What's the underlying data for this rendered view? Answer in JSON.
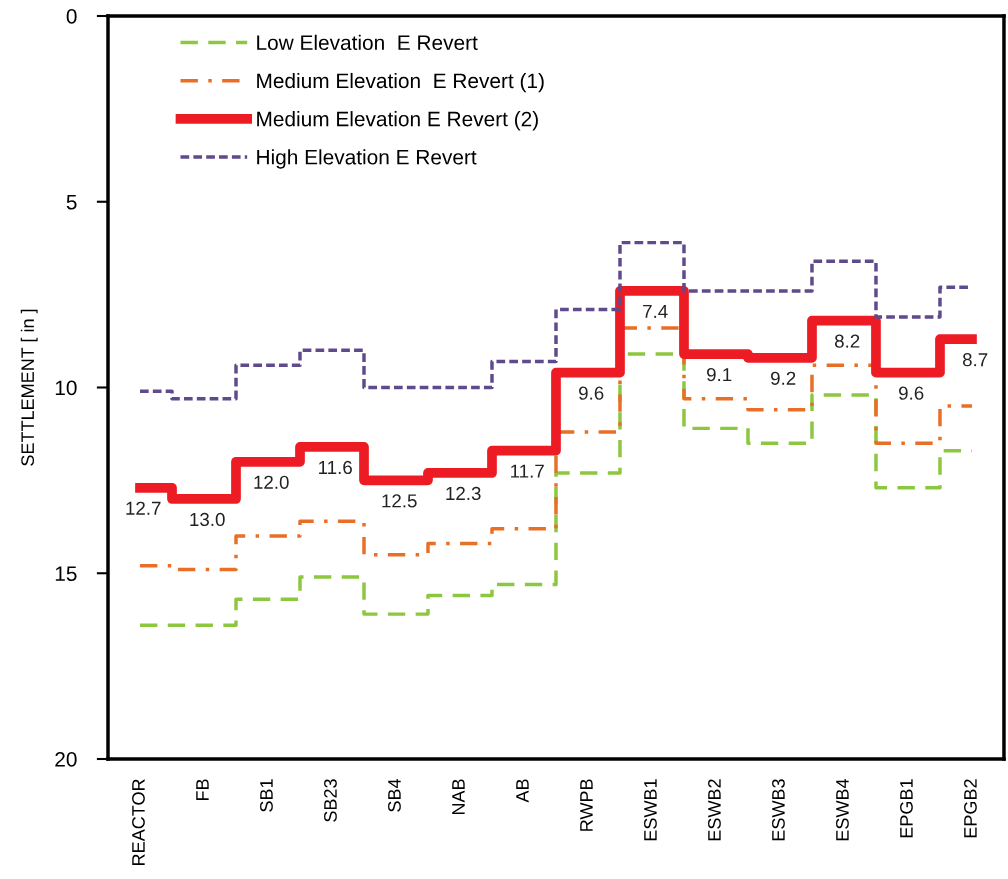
{
  "chart_data": {
    "type": "step",
    "ylabel": "SETTLEMENT [ in ]",
    "categories": [
      "REACTOR",
      "FB",
      "SB1",
      "SB23",
      "SB4",
      "NAB",
      "AB",
      "RWPB",
      "ESWB1",
      "ESWB2",
      "ESWB3",
      "ESWB4",
      "EPGB1",
      "EPGB2"
    ],
    "series": [
      {
        "name": "Low Elevation  E Revert",
        "color": "#8dc63f",
        "line_style": "dashed",
        "values": [
          16.4,
          16.4,
          15.7,
          15.1,
          16.1,
          15.6,
          15.3,
          12.3,
          9.1,
          11.1,
          11.5,
          10.2,
          12.7,
          11.7
        ]
      },
      {
        "name": "Medium Elevation  E Revert (1)",
        "color": "#e86f25",
        "line_style": "dashdot",
        "values": [
          14.8,
          14.9,
          14.0,
          13.6,
          14.5,
          14.2,
          13.8,
          11.2,
          8.4,
          10.3,
          10.6,
          9.4,
          11.5,
          10.5
        ]
      },
      {
        "name": "Medium Elevation E Revert (2)",
        "color": "#ed1c24",
        "line_style": "solid",
        "value_labels": [
          "12.7",
          "13.0",
          "12.0",
          "11.6",
          "12.5",
          "12.3",
          "11.7",
          "9.6",
          "7.4",
          "9.1",
          "9.2",
          "8.2",
          "9.6",
          "8.7"
        ],
        "values": [
          12.7,
          13.0,
          12.0,
          11.6,
          12.5,
          12.3,
          11.7,
          9.6,
          7.4,
          9.1,
          9.2,
          8.2,
          9.6,
          8.7
        ]
      },
      {
        "name": "High Elevation E Revert",
        "color": "#5f4a8b",
        "line_style": "dotted",
        "values": [
          10.1,
          10.3,
          9.4,
          9.0,
          10.0,
          10.0,
          9.3,
          7.9,
          6.1,
          7.4,
          7.4,
          6.6,
          8.1,
          7.3
        ]
      }
    ],
    "ylim": [
      20,
      0
    ],
    "yticks": [
      0,
      5,
      10,
      15,
      20
    ],
    "grid": false,
    "legend": "top left"
  }
}
